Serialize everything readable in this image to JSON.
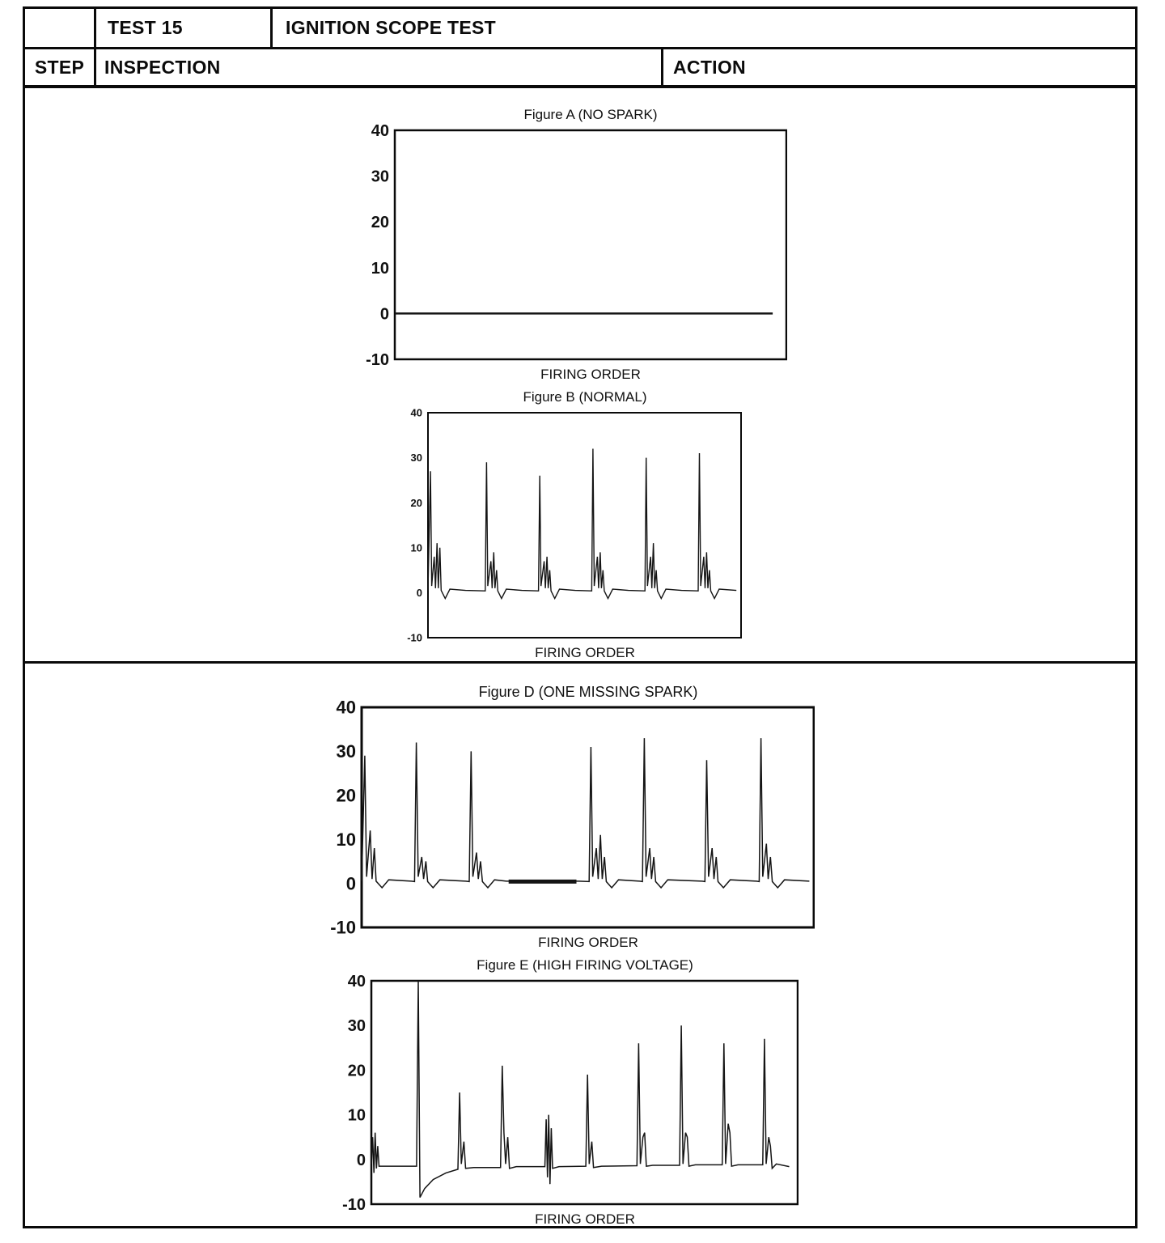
{
  "header": {
    "test_label": "TEST 15",
    "test_title": "IGNITION SCOPE TEST",
    "columns": {
      "step": "STEP",
      "inspection": "INSPECTION",
      "action": "ACTION"
    }
  },
  "chart_data": [
    {
      "id": "figure-a",
      "type": "line",
      "title": "Figure A (NO SPARK)",
      "xlabel": "FIRING ORDER",
      "ylim": [
        -10,
        40
      ],
      "yticks": [
        40,
        30,
        20,
        10,
        0,
        -10
      ],
      "grid": false,
      "box_stroke": 2.5,
      "series": [
        {
          "name": "scope-trace-flat-zero",
          "stroke_width": 2.5,
          "points": [
            [
              0,
              0
            ],
            [
              96.5,
              0
            ]
          ]
        }
      ]
    },
    {
      "id": "figure-b",
      "type": "line",
      "title": "Figure B (NORMAL)",
      "xlabel": "FIRING ORDER",
      "ylim": [
        -10,
        40
      ],
      "yticks": [
        40,
        30,
        20,
        10,
        0,
        -10
      ],
      "grid": false,
      "box_stroke": 2,
      "series": [
        {
          "name": "scope-trace-normal",
          "stroke_width": 1.4,
          "points": [
            [
              0,
              0.5
            ],
            [
              0.8,
              27
            ],
            [
              1.2,
              1.5
            ],
            [
              2.0,
              8
            ],
            [
              2.4,
              1
            ],
            [
              2.9,
              11
            ],
            [
              3.3,
              1
            ],
            [
              3.8,
              10
            ],
            [
              4.2,
              0.5
            ],
            [
              5.5,
              -1.3
            ],
            [
              7,
              0.8
            ],
            [
              12,
              0.5
            ],
            [
              18.3,
              0.4
            ],
            [
              18.7,
              29
            ],
            [
              19.1,
              1.5
            ],
            [
              20.1,
              7
            ],
            [
              20.5,
              1
            ],
            [
              21,
              9
            ],
            [
              21.4,
              1
            ],
            [
              21.9,
              5
            ],
            [
              22.3,
              0.4
            ],
            [
              23.5,
              -1.3
            ],
            [
              25,
              0.8
            ],
            [
              30,
              0.5
            ],
            [
              35.3,
              0.4
            ],
            [
              35.7,
              26
            ],
            [
              36.1,
              1.5
            ],
            [
              37.1,
              7
            ],
            [
              37.5,
              1
            ],
            [
              38,
              8
            ],
            [
              38.4,
              1
            ],
            [
              38.9,
              5
            ],
            [
              39.3,
              0.4
            ],
            [
              40.5,
              -1.3
            ],
            [
              42,
              0.8
            ],
            [
              47,
              0.5
            ],
            [
              52.3,
              0.4
            ],
            [
              52.7,
              32
            ],
            [
              53.1,
              1.5
            ],
            [
              54.1,
              8
            ],
            [
              54.5,
              1
            ],
            [
              55,
              9
            ],
            [
              55.4,
              1
            ],
            [
              55.9,
              5
            ],
            [
              56.3,
              0.4
            ],
            [
              57.5,
              -1.3
            ],
            [
              59,
              0.8
            ],
            [
              64,
              0.5
            ],
            [
              69.3,
              0.4
            ],
            [
              69.7,
              30
            ],
            [
              70.1,
              1.5
            ],
            [
              71.1,
              8
            ],
            [
              71.5,
              1
            ],
            [
              72,
              11
            ],
            [
              72.4,
              1
            ],
            [
              72.9,
              5
            ],
            [
              73.3,
              0.4
            ],
            [
              74.5,
              -1.3
            ],
            [
              76,
              0.8
            ],
            [
              81,
              0.5
            ],
            [
              86.3,
              0.4
            ],
            [
              86.7,
              31
            ],
            [
              87.1,
              1.5
            ],
            [
              88.1,
              8
            ],
            [
              88.5,
              1
            ],
            [
              89,
              9
            ],
            [
              89.4,
              1
            ],
            [
              89.9,
              5
            ],
            [
              90.3,
              0.4
            ],
            [
              91.5,
              -1.3
            ],
            [
              93,
              0.8
            ],
            [
              98.5,
              0.5
            ]
          ]
        }
      ]
    },
    {
      "id": "figure-d",
      "type": "line",
      "title": "Figure D (ONE MISSING SPARK)",
      "xlabel": "FIRING ORDER",
      "ylim": [
        -10,
        40
      ],
      "yticks": [
        40,
        30,
        20,
        10,
        0,
        -10
      ],
      "grid": false,
      "box_stroke": 3,
      "series": [
        {
          "name": "scope-trace-one-missing",
          "stroke_width": 1.5,
          "points": [
            [
              0,
              0.5
            ],
            [
              0.7,
              29
            ],
            [
              1.1,
              1.5
            ],
            [
              1.9,
              12
            ],
            [
              2.3,
              1
            ],
            [
              2.8,
              8
            ],
            [
              3.2,
              0.5
            ],
            [
              4.5,
              -1
            ],
            [
              6,
              0.8
            ],
            [
              11,
              0.5
            ],
            [
              11.7,
              0.4
            ],
            [
              12.1,
              32
            ],
            [
              12.5,
              1.5
            ],
            [
              13.3,
              6
            ],
            [
              13.7,
              1
            ],
            [
              14.2,
              5
            ],
            [
              14.6,
              0.4
            ],
            [
              15.8,
              -1
            ],
            [
              17.3,
              0.8
            ],
            [
              23,
              0.5
            ],
            [
              23.8,
              0.4
            ],
            [
              24.2,
              30
            ],
            [
              24.6,
              1.5
            ],
            [
              25.4,
              7
            ],
            [
              25.8,
              1
            ],
            [
              26.3,
              5
            ],
            [
              26.7,
              0.4
            ],
            [
              27.9,
              -1
            ],
            [
              29.4,
              0.8
            ],
            [
              32,
              0.5
            ],
            [
              48,
              0.5
            ],
            [
              50.3,
              0.4
            ],
            [
              50.7,
              31
            ],
            [
              51.1,
              1.5
            ],
            [
              51.9,
              8
            ],
            [
              52.3,
              1
            ],
            [
              52.8,
              11
            ],
            [
              53.2,
              1
            ],
            [
              53.7,
              6
            ],
            [
              54.1,
              0.4
            ],
            [
              55.3,
              -1
            ],
            [
              56.8,
              0.8
            ],
            [
              61.5,
              0.5
            ],
            [
              62.1,
              0.4
            ],
            [
              62.5,
              33
            ],
            [
              62.9,
              1.5
            ],
            [
              63.7,
              8
            ],
            [
              64.1,
              1
            ],
            [
              64.6,
              6
            ],
            [
              65,
              0.4
            ],
            [
              66.2,
              -1
            ],
            [
              67.7,
              0.8
            ],
            [
              75.3,
              0.5
            ],
            [
              75.9,
              0.4
            ],
            [
              76.3,
              28
            ],
            [
              76.7,
              1.5
            ],
            [
              77.5,
              8
            ],
            [
              77.9,
              1
            ],
            [
              78.4,
              6
            ],
            [
              78.8,
              0.4
            ],
            [
              80,
              -1
            ],
            [
              81.5,
              0.8
            ],
            [
              87.3,
              0.5
            ],
            [
              87.9,
              0.4
            ],
            [
              88.3,
              33
            ],
            [
              88.7,
              1.5
            ],
            [
              89.5,
              9
            ],
            [
              89.9,
              1
            ],
            [
              90.4,
              6
            ],
            [
              90.8,
              0.4
            ],
            [
              92,
              -1
            ],
            [
              93.5,
              0.8
            ],
            [
              99,
              0.5
            ]
          ]
        },
        {
          "name": "missing-spark-bold-baseline",
          "stroke_width": 5,
          "points": [
            [
              32.5,
              0.4
            ],
            [
              47.5,
              0.4
            ]
          ]
        }
      ]
    },
    {
      "id": "figure-e",
      "type": "line",
      "title": "Figure E (HIGH FIRING VOLTAGE)",
      "xlabel": "FIRING ORDER",
      "ylim": [
        -10,
        40
      ],
      "yticks": [
        40,
        30,
        20,
        10,
        0,
        -10
      ],
      "grid": false,
      "box_stroke": 2.5,
      "series": [
        {
          "name": "scope-trace-high-voltage",
          "stroke_width": 1.5,
          "points": [
            [
              0,
              -1
            ],
            [
              0.3,
              5
            ],
            [
              0.6,
              -3
            ],
            [
              0.9,
              6
            ],
            [
              1.2,
              -2
            ],
            [
              1.5,
              3
            ],
            [
              1.8,
              -1.5
            ],
            [
              10.6,
              -1.5
            ],
            [
              11,
              40
            ],
            [
              11.4,
              -8.5
            ],
            [
              12.5,
              -6.5
            ],
            [
              14.5,
              -4.5
            ],
            [
              17.5,
              -3
            ],
            [
              20.3,
              -2.2
            ],
            [
              20.7,
              15
            ],
            [
              21.1,
              -1
            ],
            [
              21.7,
              4
            ],
            [
              22.1,
              -2
            ],
            [
              24,
              -1.8
            ],
            [
              30.3,
              -1.8
            ],
            [
              30.7,
              21
            ],
            [
              31.1,
              6
            ],
            [
              31.5,
              -1
            ],
            [
              32,
              5
            ],
            [
              32.4,
              -2
            ],
            [
              34,
              -1.6
            ],
            [
              40.7,
              -1.6
            ],
            [
              41,
              9
            ],
            [
              41.3,
              -4
            ],
            [
              41.6,
              10
            ],
            [
              41.9,
              -5.5
            ],
            [
              42.2,
              7
            ],
            [
              42.5,
              -2
            ],
            [
              44,
              -1.6
            ],
            [
              50.3,
              -1.5
            ],
            [
              50.7,
              19
            ],
            [
              51.1,
              -1
            ],
            [
              51.7,
              4
            ],
            [
              52.1,
              -1.8
            ],
            [
              54,
              -1.5
            ],
            [
              62.3,
              -1.4
            ],
            [
              62.7,
              26
            ],
            [
              63.1,
              -1
            ],
            [
              63.7,
              5
            ],
            [
              64.1,
              6
            ],
            [
              64.5,
              -1.5
            ],
            [
              66,
              -1.3
            ],
            [
              72.3,
              -1.3
            ],
            [
              72.7,
              30
            ],
            [
              73.1,
              -1
            ],
            [
              73.7,
              6
            ],
            [
              74.1,
              5
            ],
            [
              74.5,
              -1.5
            ],
            [
              76,
              -1.2
            ],
            [
              82.3,
              -1.2
            ],
            [
              82.7,
              26
            ],
            [
              83.1,
              -1
            ],
            [
              83.7,
              8
            ],
            [
              84.1,
              6
            ],
            [
              84.5,
              -1.5
            ],
            [
              86,
              -1.2
            ],
            [
              91.8,
              -1.2
            ],
            [
              92.2,
              27
            ],
            [
              92.6,
              -1
            ],
            [
              93.2,
              5
            ],
            [
              93.6,
              3
            ],
            [
              94,
              -2
            ],
            [
              95,
              -1
            ],
            [
              98,
              -1.6
            ]
          ]
        }
      ]
    }
  ]
}
